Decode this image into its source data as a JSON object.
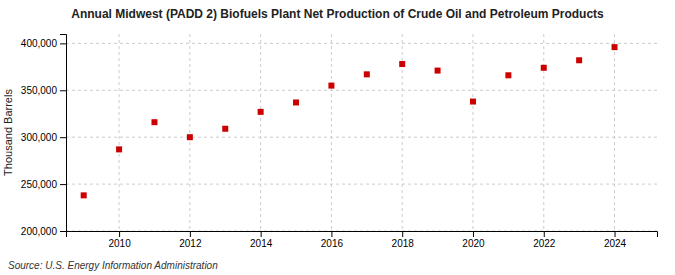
{
  "chart_data": {
    "type": "scatter",
    "title": "Annual Midwest (PADD 2) Biofuels Plant Net Production of Crude Oil and Petroleum Products",
    "ylabel": "Thousand Barrels",
    "annotations": [
      "Source: U.S. Energy Information Administration"
    ],
    "x": [
      2009,
      2010,
      2011,
      2012,
      2013,
      2014,
      2015,
      2016,
      2017,
      2018,
      2019,
      2020,
      2021,
      2022,
      2023,
      2024
    ],
    "values": [
      238000,
      287000,
      316000,
      300000,
      309000,
      327000,
      337000,
      355000,
      367000,
      378000,
      371000,
      338000,
      366000,
      374000,
      382000,
      396000
    ],
    "color": "#cc0000",
    "marker": "square",
    "xlim": [
      2008.5,
      2025.2
    ],
    "xticks": [
      2010,
      2012,
      2014,
      2016,
      2018,
      2020,
      2022,
      2024
    ],
    "ylim": [
      200000,
      410000
    ],
    "yticks": [
      {
        "value": 200000,
        "label": "200,000"
      },
      {
        "value": 250000,
        "label": "250,000"
      },
      {
        "value": 300000,
        "label": "300,000"
      },
      {
        "value": 350000,
        "label": "350,000"
      },
      {
        "value": 400000,
        "label": "400,000"
      }
    ],
    "grid": true
  }
}
